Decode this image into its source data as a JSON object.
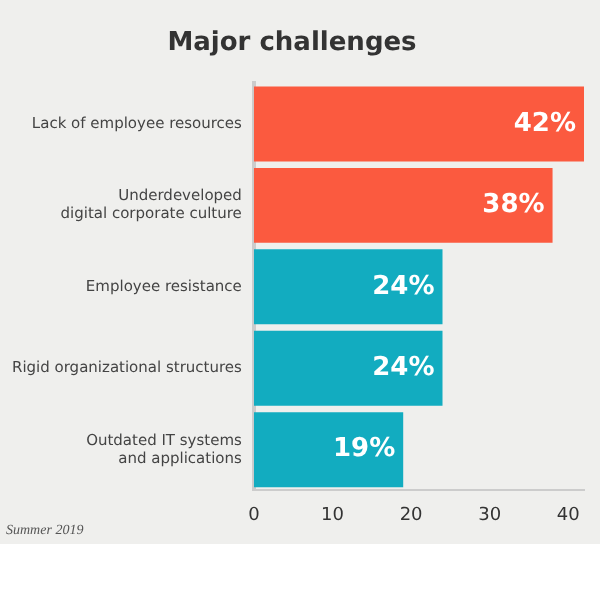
{
  "chart_data": {
    "type": "bar",
    "orientation": "horizontal",
    "title": "Major challenges",
    "categories": [
      "Lack of employee resources",
      "Underdeveloped\ndigital corporate culture",
      "Employee resistance",
      "Rigid organizational structures",
      "Outdated IT systems\nand applications"
    ],
    "values": [
      42,
      38,
      24,
      24,
      19
    ],
    "colors": [
      "#fb5a3f",
      "#fb5a3f",
      "#12acc0",
      "#12acc0",
      "#12acc0"
    ],
    "value_labels": [
      "42%",
      "38%",
      "24%",
      "24%",
      "19%"
    ],
    "xlim": [
      0,
      42
    ],
    "xticks": [
      0,
      10,
      20,
      30,
      40
    ],
    "grid": false,
    "annotations": [
      "Summer 2019"
    ]
  }
}
